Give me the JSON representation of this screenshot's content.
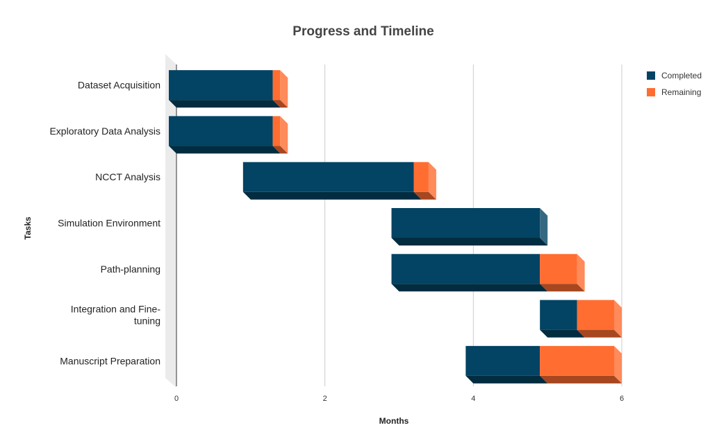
{
  "chart_data": {
    "type": "bar",
    "orientation": "horizontal",
    "stacked": true,
    "three_d": true,
    "title": "Progress and Timeline",
    "xlabel": "Months",
    "ylabel": "Tasks",
    "xlim": [
      0,
      6
    ],
    "xticks": [
      "0",
      "2",
      "4",
      "6"
    ],
    "grid": true,
    "legend_position": "top-right",
    "categories": [
      "Dataset Acquisition",
      "Exploratory Data Analysis",
      "NCCT Analysis",
      "Simulation Environment",
      "Path-planning",
      "Integration and Fine-tuning",
      "Manuscript Preparation"
    ],
    "category_lines": [
      [
        "Dataset Acquisition"
      ],
      [
        "Exploratory Data Analysis"
      ],
      [
        "NCCT Analysis"
      ],
      [
        "Simulation Environment"
      ],
      [
        "Path-planning"
      ],
      [
        "Integration and Fine-",
        "tuning"
      ],
      [
        "Manuscript Preparation"
      ]
    ],
    "start": [
      0,
      0,
      1,
      3,
      3,
      5,
      4
    ],
    "series": [
      {
        "name": "Completed",
        "color": "#034363",
        "values": [
          1.4,
          1.4,
          2.3,
          2.0,
          2.0,
          0.5,
          1.0
        ]
      },
      {
        "name": "Remaining",
        "color": "#ff6d31",
        "values": [
          0.1,
          0.1,
          0.2,
          0.0,
          0.5,
          0.5,
          1.0
        ]
      }
    ]
  }
}
